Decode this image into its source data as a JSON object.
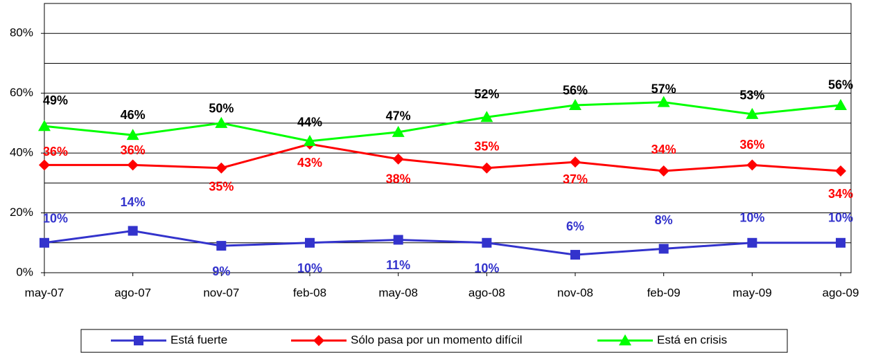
{
  "chart_data": {
    "type": "line",
    "categories": [
      "may-07",
      "ago-07",
      "nov-07",
      "feb-08",
      "may-08",
      "ago-08",
      "nov-08",
      "feb-09",
      "may-09",
      "ago-09"
    ],
    "ylim": [
      0,
      90
    ],
    "yticks": [
      {
        "value": 0,
        "label": "0%"
      },
      {
        "value": 20,
        "label": "20%"
      },
      {
        "value": 40,
        "label": "40%"
      },
      {
        "value": 60,
        "label": "60%"
      },
      {
        "value": 80,
        "label": "80%"
      }
    ],
    "grid": true,
    "legend": "bottom",
    "series": [
      {
        "name": "Está fuerte",
        "color": "#3333cc",
        "marker": "square",
        "values": [
          10,
          14,
          9,
          10,
          11,
          10,
          6,
          8,
          10,
          10
        ],
        "value_labels": [
          "10%",
          "14%",
          "9%",
          "10%",
          "11%",
          "10%",
          "6%",
          "8%",
          "10%",
          "10%"
        ]
      },
      {
        "name": "Sólo pasa por un momento difícil",
        "color": "#ff0000",
        "marker": "diamond",
        "values": [
          36,
          36,
          35,
          43,
          38,
          35,
          37,
          34,
          36,
          34
        ],
        "value_labels": [
          "36%",
          "36%",
          "35%",
          "43%",
          "38%",
          "35%",
          "37%",
          "34%",
          "36%",
          "34%"
        ]
      },
      {
        "name": "Está en crisis",
        "color": "#00ff00",
        "marker": "triangle",
        "values": [
          49,
          46,
          50,
          44,
          47,
          52,
          56,
          57,
          53,
          56
        ],
        "value_labels": [
          "49%",
          "46%",
          "50%",
          "44%",
          "47%",
          "52%",
          "56%",
          "57%",
          "53%",
          "56%"
        ]
      }
    ]
  }
}
